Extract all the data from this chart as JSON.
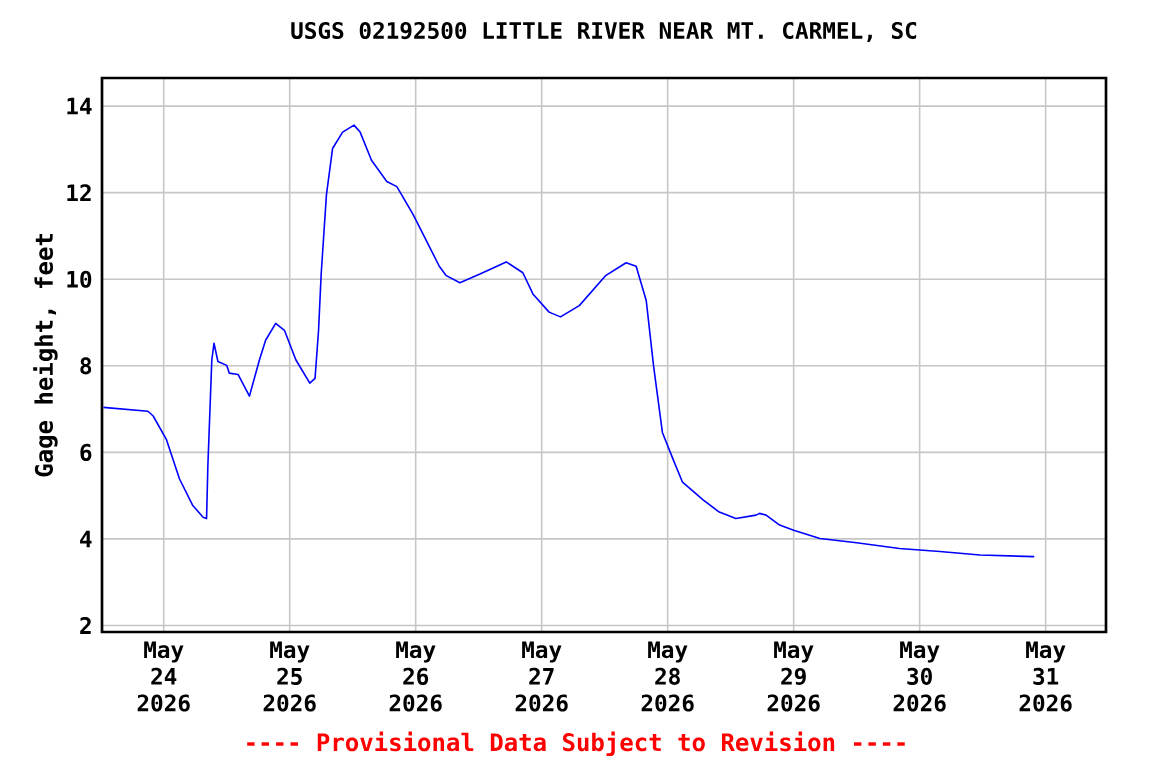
{
  "chart_data": {
    "type": "line",
    "title": "USGS 02192500 LITTLE RIVER NEAR MT. CARMEL, SC",
    "ylabel": "Gage height, feet",
    "annotations": [
      "---- Provisional Data Subject to Revision ----"
    ],
    "x": [
      "2026-05-23T12:30",
      "2026-05-23T21:00",
      "2026-05-23T22:00",
      "2026-05-24T00:30",
      "2026-05-24T03:00",
      "2026-05-24T05:30",
      "2026-05-24T07:30",
      "2026-05-24T08:10",
      "2026-05-24T08:25",
      "2026-05-24T09:10",
      "2026-05-24T09:35",
      "2026-05-24T10:20",
      "2026-05-24T12:00",
      "2026-05-24T12:30",
      "2026-05-24T14:10",
      "2026-05-24T16:20",
      "2026-05-24T18:15",
      "2026-05-24T19:25",
      "2026-05-24T21:20",
      "2026-05-24T23:00",
      "2026-05-25T01:10",
      "2026-05-25T03:50",
      "2026-05-25T04:50",
      "2026-05-25T05:30",
      "2026-05-25T06:00",
      "2026-05-25T07:00",
      "2026-05-25T08:10",
      "2026-05-25T10:05",
      "2026-05-25T12:15",
      "2026-05-25T13:25",
      "2026-05-25T15:35",
      "2026-05-25T18:30",
      "2026-05-25T20:25",
      "2026-05-25T23:30",
      "2026-05-26T03:20",
      "2026-05-26T04:30",
      "2026-05-26T05:45",
      "2026-05-26T08:25",
      "2026-05-26T12:15",
      "2026-05-26T17:15",
      "2026-05-26T20:25",
      "2026-05-26T22:20",
      "2026-05-27T01:25",
      "2026-05-27T03:35",
      "2026-05-27T07:10",
      "2026-05-27T12:15",
      "2026-05-27T16:05",
      "2026-05-27T18:00",
      "2026-05-27T19:55",
      "2026-05-27T21:20",
      "2026-05-27T23:00",
      "2026-05-28T01:00",
      "2026-05-28T02:50",
      "2026-05-28T06:45",
      "2026-05-28T09:50",
      "2026-05-28T13:00",
      "2026-05-28T16:50",
      "2026-05-28T17:30",
      "2026-05-28T18:45",
      "2026-05-28T21:20",
      "2026-05-29T00:00",
      "2026-05-29T05:00",
      "2026-05-29T12:00",
      "2026-05-29T20:10",
      "2026-05-30T03:50",
      "2026-05-30T11:30",
      "2026-05-30T21:50"
    ],
    "series": [
      {
        "color": "#0000ff",
        "values": [
          7.04,
          6.95,
          6.84,
          6.3,
          5.39,
          4.78,
          4.5,
          4.47,
          5.69,
          8.14,
          8.52,
          8.1,
          8.01,
          7.83,
          7.8,
          7.3,
          8.14,
          8.59,
          8.98,
          8.82,
          8.14,
          7.6,
          7.71,
          8.82,
          10.12,
          11.95,
          13.02,
          13.4,
          13.56,
          13.4,
          12.75,
          12.26,
          12.14,
          11.5,
          10.58,
          10.3,
          10.09,
          9.92,
          10.12,
          10.4,
          10.15,
          9.66,
          9.24,
          9.13,
          9.39,
          10.09,
          10.38,
          10.3,
          9.51,
          7.98,
          6.46,
          5.85,
          5.31,
          4.9,
          4.62,
          4.47,
          4.55,
          4.59,
          4.55,
          4.32,
          4.2,
          4.01,
          3.91,
          3.78,
          3.71,
          3.63,
          3.59
        ]
      }
    ],
    "xlim": [
      "2026-05-23T12:15",
      "2026-05-31T11:30"
    ],
    "xticks": [
      {
        "value": "2026-05-24",
        "label": "May 24 2026"
      },
      {
        "value": "2026-05-25",
        "label": "May 25 2026"
      },
      {
        "value": "2026-05-26",
        "label": "May 26 2026"
      },
      {
        "value": "2026-05-27",
        "label": "May 27 2026"
      },
      {
        "value": "2026-05-28",
        "label": "May 28 2026"
      },
      {
        "value": "2026-05-29",
        "label": "May 29 2026"
      },
      {
        "value": "2026-05-30",
        "label": "May 30 2026"
      },
      {
        "value": "2026-05-31",
        "label": "May 31 2026"
      }
    ],
    "ylim": [
      1.85,
      14.65
    ],
    "yticks": [
      2,
      4,
      6,
      8,
      10,
      12,
      14
    ],
    "grid": true,
    "marker": "none",
    "line_style": "solid"
  }
}
